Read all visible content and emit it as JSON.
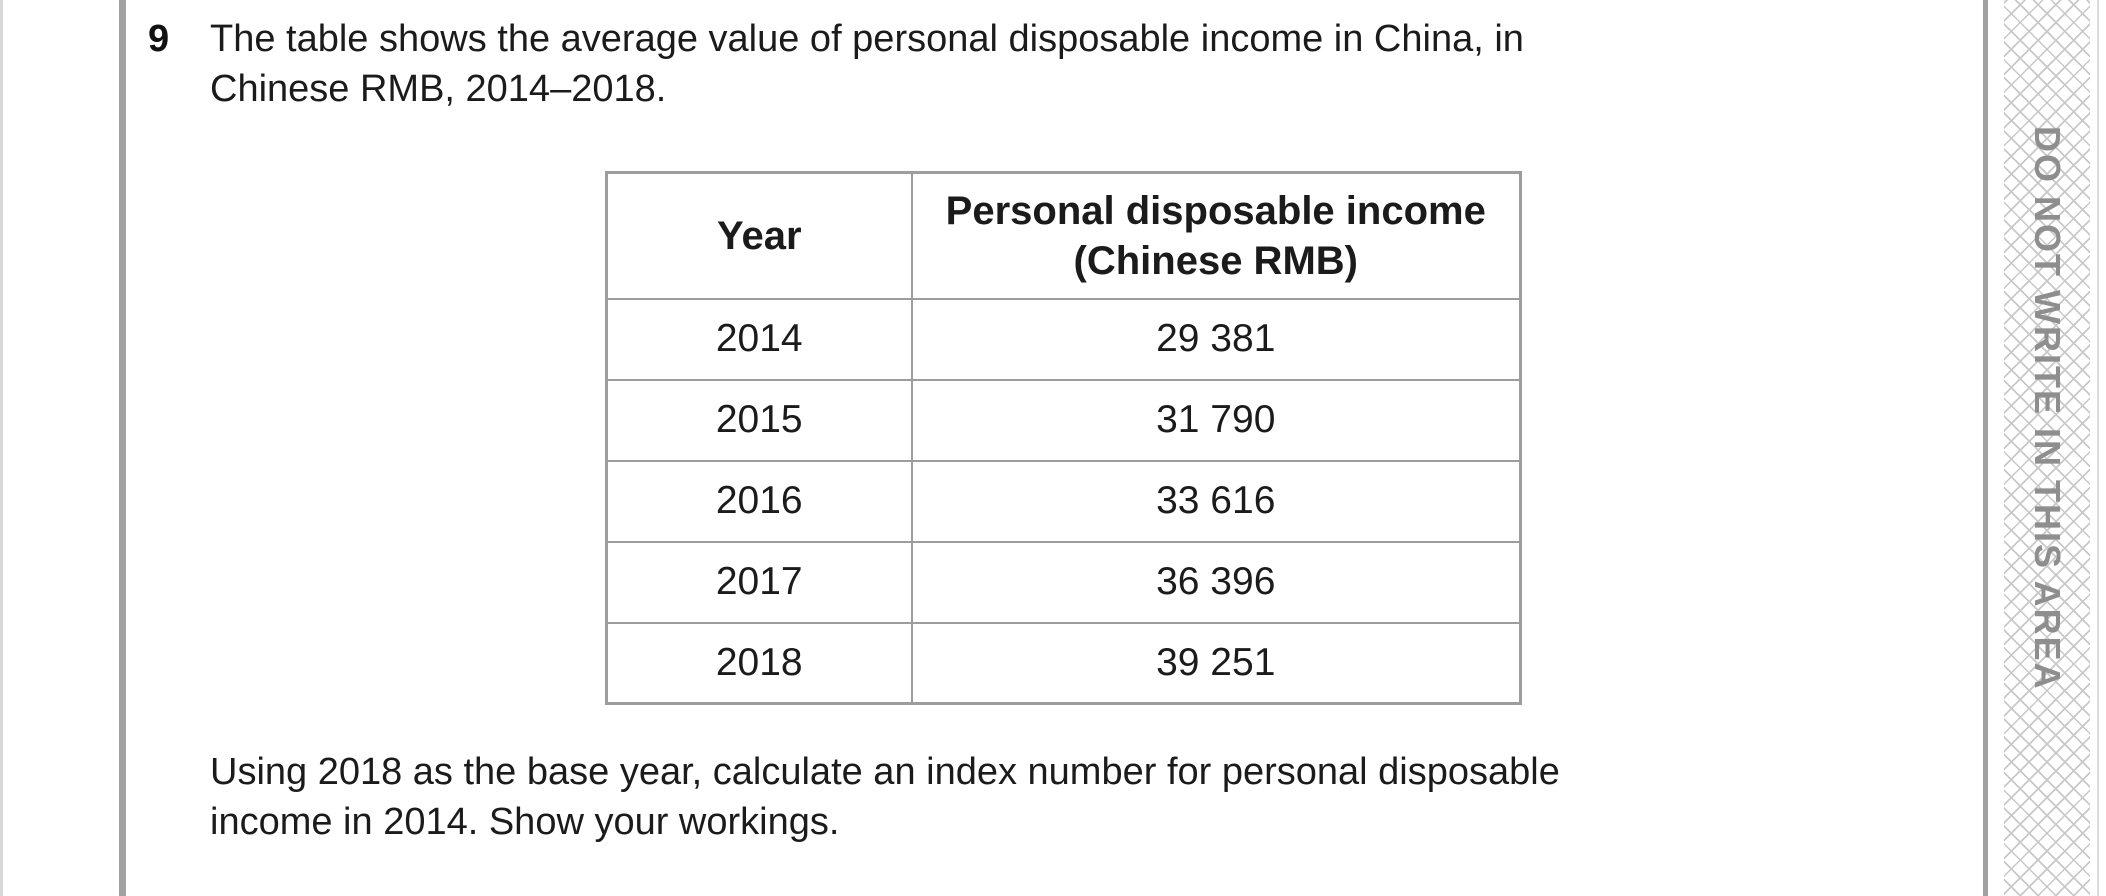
{
  "colors": {
    "text": "#1b1b1b",
    "rule_gray": "#a2a2a2",
    "table_border_gray": "#9d9d9d",
    "hatch_line_gray": "#c8c8c8",
    "margin_text_gray": "#8e8e8e"
  },
  "margin_note": {
    "text": "DO NOT WRITE IN THIS AREA"
  },
  "question": {
    "number": "9",
    "intro_lines": [
      "The table shows the average value of personal disposable income in China, in",
      "Chinese RMB, 2014–2018."
    ],
    "instruction_lines": [
      "Using 2018 as the base year, calculate an index number for personal disposable",
      "income in 2014. Show your workings."
    ]
  },
  "table": {
    "col1_header": "Year",
    "col2_header_lines": [
      "Personal disposable income",
      "(Chinese RMB)"
    ],
    "rows": [
      {
        "year": "2014",
        "income": "29 381"
      },
      {
        "year": "2015",
        "income": "31 790"
      },
      {
        "year": "2016",
        "income": "33 616"
      },
      {
        "year": "2017",
        "income": "36 396"
      },
      {
        "year": "2018",
        "income": "39 251"
      }
    ]
  }
}
